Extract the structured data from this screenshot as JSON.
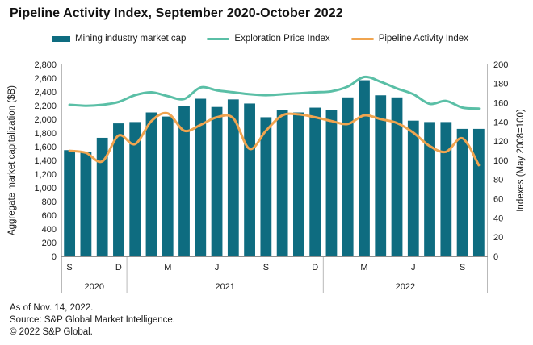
{
  "title": "Pipeline Activity Index, September 2020-October 2022",
  "legend": {
    "items": [
      {
        "label": "Mining industry market cap",
        "swatch": "bar",
        "color": "#0e6c80"
      },
      {
        "label": "Exploration Price Index",
        "swatch": "line",
        "color": "#5abfa6"
      },
      {
        "label": "Pipeline Activity Index",
        "swatch": "line",
        "color": "#f0a44f"
      }
    ]
  },
  "left_axis": {
    "title": "Aggregate market capitalization ($B)",
    "tick_labels": [
      "2,800",
      "2,600",
      "2,400",
      "2,200",
      "2,000",
      "1,800",
      "1,600",
      "1,400",
      "1,200",
      "1,000",
      "800",
      "600",
      "400",
      "200",
      "0"
    ],
    "min": 0,
    "max": 2800
  },
  "right_axis": {
    "title": "Indexes (May 2008=100)",
    "tick_labels": [
      "200",
      "180",
      "160",
      "140",
      "120",
      "100",
      "80",
      "60",
      "40",
      "20",
      "0"
    ],
    "min": 0,
    "max": 200
  },
  "x_axis": {
    "month_ticks": [
      {
        "index": 0,
        "label": "S"
      },
      {
        "index": 3,
        "label": "D"
      },
      {
        "index": 6,
        "label": "M"
      },
      {
        "index": 9,
        "label": "J"
      },
      {
        "index": 12,
        "label": "S"
      },
      {
        "index": 15,
        "label": "D"
      },
      {
        "index": 18,
        "label": "M"
      },
      {
        "index": 21,
        "label": "J"
      },
      {
        "index": 24,
        "label": "S"
      }
    ],
    "years": [
      {
        "label": "2020",
        "from": 0,
        "to": 3
      },
      {
        "label": "2021",
        "from": 4,
        "to": 15
      },
      {
        "label": "2022",
        "from": 16,
        "to": 25
      }
    ]
  },
  "footer": {
    "as_of": "As of Nov. 14, 2022.",
    "source": "Source: S&P Global Market Intelligence.",
    "copyright": "© 2022 S&P Global."
  },
  "chart_data": {
    "type": "bar",
    "title": "Pipeline Activity Index, September 2020-October 2022",
    "x": [
      "Sep 2020",
      "Oct 2020",
      "Nov 2020",
      "Dec 2020",
      "Jan 2021",
      "Feb 2021",
      "Mar 2021",
      "Apr 2021",
      "May 2021",
      "Jun 2021",
      "Jul 2021",
      "Aug 2021",
      "Sep 2021",
      "Oct 2021",
      "Nov 2021",
      "Dec 2021",
      "Jan 2022",
      "Feb 2022",
      "Mar 2022",
      "Apr 2022",
      "May 2022",
      "Jun 2022",
      "Jul 2022",
      "Aug 2022",
      "Sep 2022",
      "Oct 2022"
    ],
    "series": [
      {
        "name": "Mining industry market cap",
        "type": "bar",
        "axis": "left",
        "color": "#0e6c80",
        "values": [
          1550,
          1520,
          1730,
          1940,
          1960,
          2100,
          2040,
          2190,
          2300,
          2180,
          2290,
          2230,
          2030,
          2130,
          2100,
          2170,
          2140,
          2320,
          2570,
          2350,
          2320,
          1980,
          1960,
          1960,
          1860,
          1860
        ]
      },
      {
        "name": "Exploration Price Index",
        "type": "line",
        "axis": "right",
        "color": "#5abfa6",
        "values": [
          158,
          157,
          158,
          161,
          168,
          171,
          167,
          164,
          176,
          173,
          171,
          169,
          168,
          169,
          170,
          171,
          172,
          177,
          187,
          182,
          175,
          169,
          159,
          162,
          155,
          154
        ]
      },
      {
        "name": "Pipeline Activity Index",
        "type": "line",
        "axis": "right",
        "color": "#f0a44f",
        "values": [
          110,
          108,
          99,
          126,
          117,
          141,
          149,
          131,
          137,
          145,
          144,
          112,
          131,
          147,
          148,
          145,
          141,
          138,
          147,
          143,
          139,
          129,
          115,
          109,
          123,
          95
        ]
      }
    ],
    "ylabel_left": "Aggregate market capitalization ($B)",
    "ylabel_right": "Indexes (May 2008=100)",
    "ylim_left": [
      0,
      2800
    ],
    "ylim_right": [
      0,
      200
    ],
    "grid": false,
    "legend_position": "top"
  }
}
